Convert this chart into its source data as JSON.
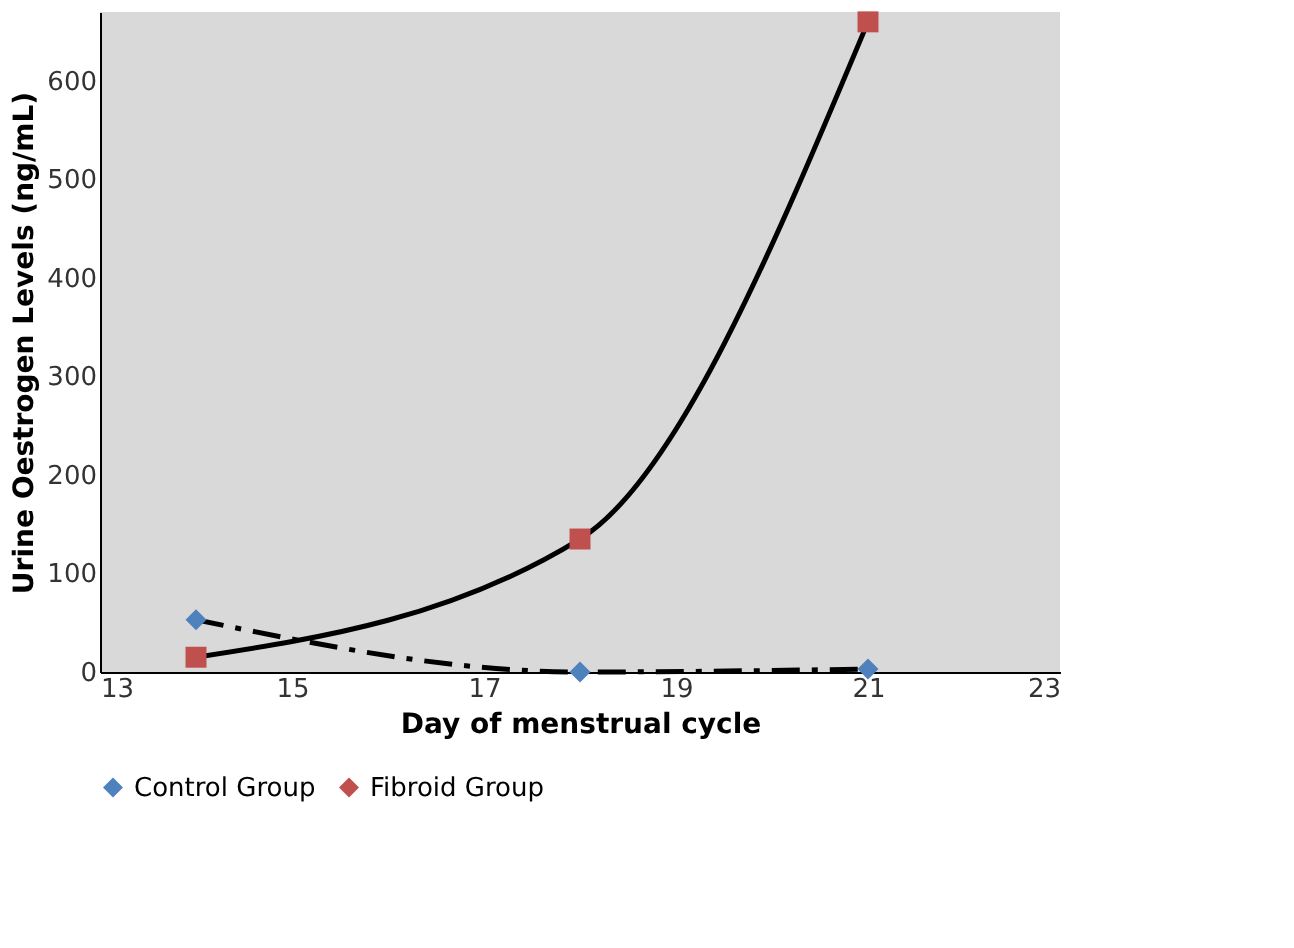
{
  "chart_data": {
    "type": "line",
    "xlabel": "Day of menstrual cycle",
    "ylabel": "Urine Oestrogen Levels (ng/mL)",
    "x": [
      14,
      18,
      21
    ],
    "xlim": [
      13,
      23
    ],
    "xticks": [
      13,
      15,
      17,
      19,
      21,
      23
    ],
    "ylim": [
      0,
      670
    ],
    "yticks": [
      0,
      100,
      200,
      300,
      400,
      500,
      600
    ],
    "grid": false,
    "legend": "bottom",
    "series": [
      {
        "name": "Control Group",
        "color": "#4f81bd",
        "values": [
          53,
          0,
          3
        ],
        "marker": "diamond",
        "line_style": "dashed"
      },
      {
        "name": "Fibroid Group",
        "color": "#c0504d",
        "values": [
          15,
          135,
          660
        ],
        "marker": "square",
        "line_style": "solid"
      }
    ]
  }
}
